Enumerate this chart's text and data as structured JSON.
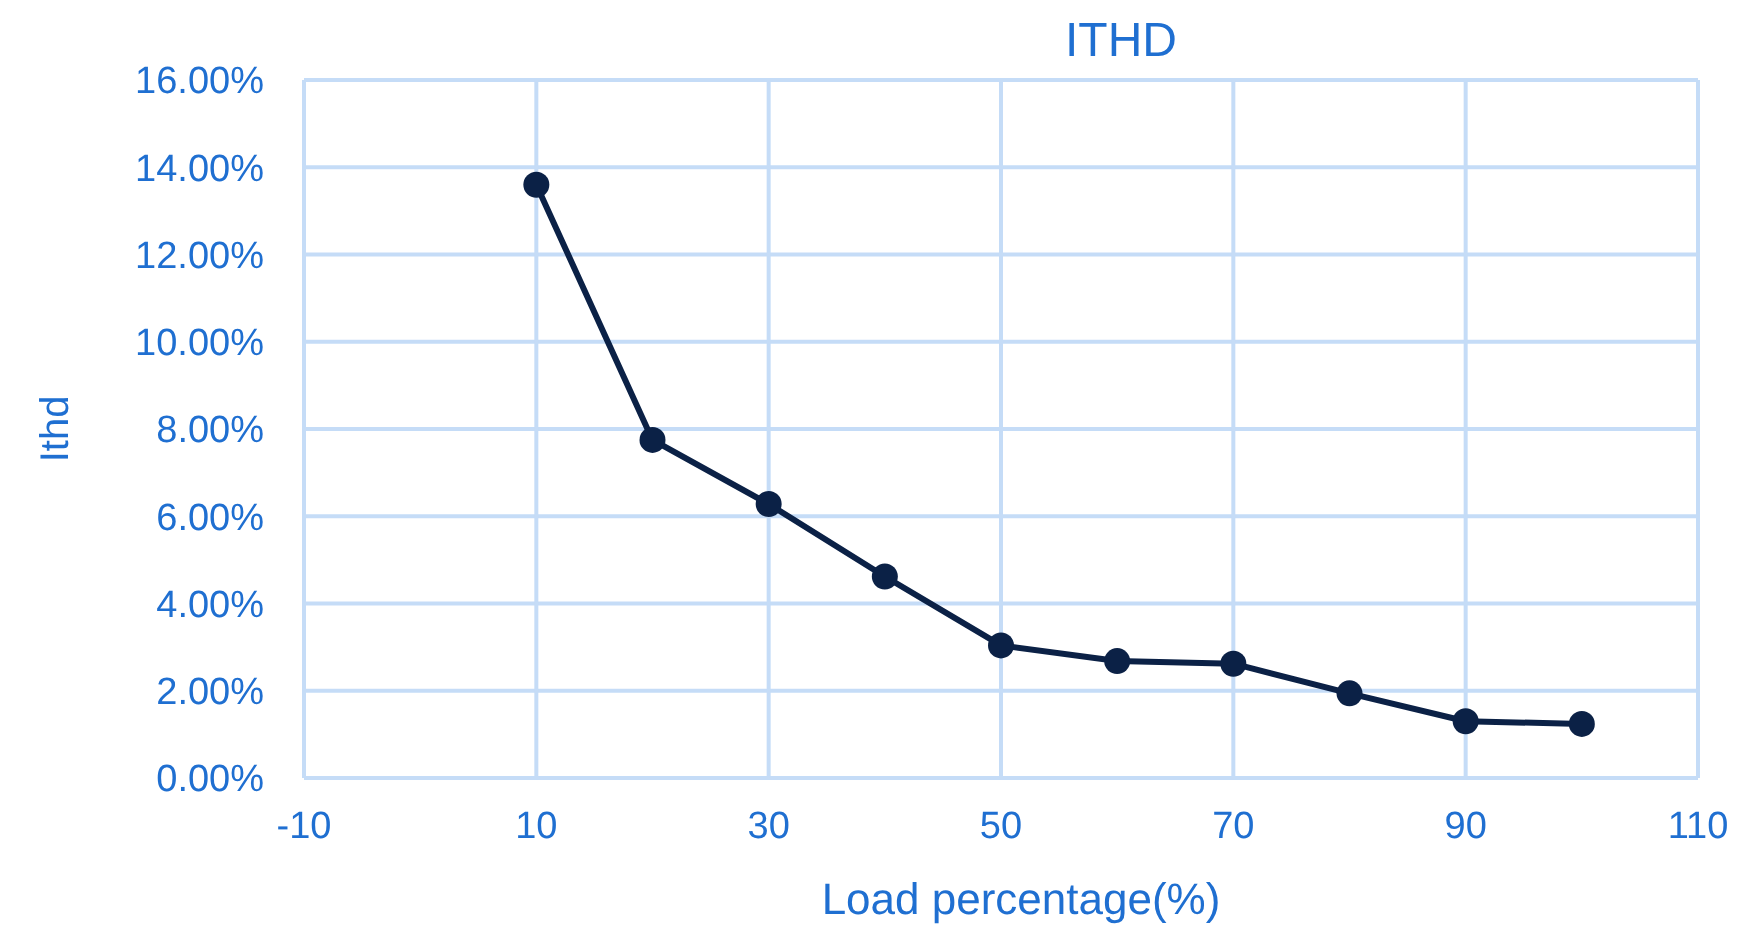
{
  "chart_data": {
    "type": "line",
    "title": "ITHD",
    "xlabel": "Load percentage(%)",
    "ylabel": "Ithd",
    "x": [
      10,
      20,
      30,
      40,
      50,
      60,
      70,
      80,
      90,
      100
    ],
    "series": [
      {
        "color": "#0b2146",
        "values": [
          13.6,
          7.75,
          6.28,
          4.62,
          3.04,
          2.68,
          2.62,
          1.94,
          1.3,
          1.24
        ]
      }
    ],
    "xlim": [
      -10,
      110
    ],
    "xticks": [
      -10,
      10,
      30,
      50,
      70,
      90,
      110
    ],
    "ylim": [
      0,
      16
    ],
    "yticks": [
      {
        "value": 0,
        "label": "0.00%"
      },
      {
        "value": 2,
        "label": "2.00%"
      },
      {
        "value": 4,
        "label": "4.00%"
      },
      {
        "value": 6,
        "label": "6.00%"
      },
      {
        "value": 8,
        "label": "8.00%"
      },
      {
        "value": 10,
        "label": "10.00%"
      },
      {
        "value": 12,
        "label": "12.00%"
      },
      {
        "value": 14,
        "label": "14.00%"
      },
      {
        "value": 16,
        "label": "16.00%"
      }
    ],
    "grid": true,
    "marker": "circle",
    "line_style": "solid"
  }
}
